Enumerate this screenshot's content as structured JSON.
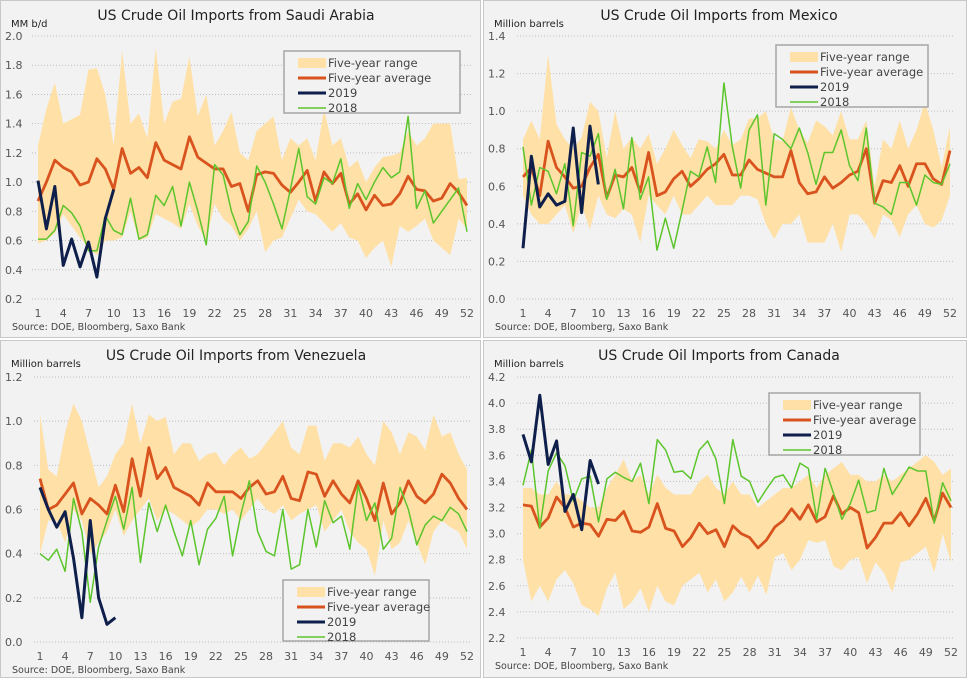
{
  "chart_data": [
    {
      "type": "line",
      "title": "US Crude Oil Imports from Saudi Arabia",
      "ylabel": "MM b/d",
      "xlabel": "",
      "source": "Source: DOE, Bloomberg, Saxo Bank",
      "ylim": [
        0.2,
        2.0
      ],
      "yticks": [
        "0.2",
        "0.4",
        "0.6",
        "0.8",
        "1.0",
        "1.2",
        "1.4",
        "1.6",
        "1.8",
        "2.0"
      ],
      "xticks": [
        "1",
        "4",
        "7",
        "10",
        "13",
        "16",
        "19",
        "22",
        "25",
        "28",
        "31",
        "34",
        "37",
        "40",
        "43",
        "46",
        "49",
        "52"
      ],
      "grid": true,
      "legend_position": "top-right",
      "legend": [
        "Five-year range",
        "Five-year average",
        "2019",
        "2018"
      ],
      "range_high": [
        1.25,
        1.5,
        1.68,
        1.4,
        1.43,
        1.46,
        1.77,
        1.78,
        1.6,
        1.25,
        1.9,
        1.4,
        1.47,
        1.3,
        1.92,
        1.4,
        1.55,
        1.57,
        1.86,
        1.45,
        1.6,
        1.25,
        1.35,
        1.48,
        1.2,
        1.15,
        1.35,
        1.4,
        1.45,
        1.15,
        1.3,
        1.25,
        1.3,
        1.15,
        1.5,
        1.25,
        1.3,
        1.1,
        1.15,
        1.0,
        1.1,
        1.17,
        1.18,
        1.2,
        1.35,
        1.25,
        1.3,
        1.4,
        1.4,
        1.4,
        1.02,
        1.03
      ],
      "range_low": [
        0.58,
        0.6,
        0.65,
        0.78,
        0.7,
        0.62,
        0.55,
        0.5,
        0.6,
        0.6,
        0.62,
        0.8,
        0.6,
        0.62,
        0.78,
        0.75,
        0.72,
        0.68,
        0.85,
        0.7,
        0.6,
        0.85,
        0.75,
        0.7,
        0.6,
        0.68,
        0.8,
        0.52,
        0.6,
        0.62,
        0.75,
        0.88,
        0.8,
        0.78,
        0.72,
        0.66,
        0.72,
        0.62,
        0.6,
        0.48,
        0.55,
        0.6,
        0.42,
        0.7,
        0.66,
        0.7,
        0.75,
        0.6,
        0.55,
        0.5,
        0.75,
        0.68
      ],
      "average": [
        0.87,
        1.0,
        1.15,
        1.1,
        1.07,
        0.98,
        1.0,
        1.16,
        1.09,
        0.95,
        1.23,
        1.06,
        1.1,
        1.03,
        1.27,
        1.15,
        1.12,
        1.09,
        1.31,
        1.17,
        1.13,
        1.09,
        1.09,
        0.97,
        0.99,
        0.8,
        1.05,
        1.07,
        1.06,
        0.98,
        0.93,
        1.0,
        1.08,
        0.87,
        1.07,
        0.99,
        1.06,
        0.85,
        0.92,
        0.81,
        0.91,
        0.84,
        0.85,
        0.92,
        1.04,
        0.95,
        0.94,
        0.87,
        0.89,
        0.99,
        0.93,
        0.84
      ],
      "y2019": [
        1.01,
        0.68,
        0.97,
        0.43,
        0.61,
        0.42,
        0.59,
        0.35,
        0.75,
        0.95
      ],
      "y2018": [
        0.61,
        0.61,
        0.67,
        0.84,
        0.79,
        0.7,
        0.53,
        0.53,
        0.77,
        0.67,
        0.64,
        0.89,
        0.61,
        0.64,
        0.91,
        0.84,
        0.97,
        0.7,
        1.0,
        0.8,
        0.57,
        1.12,
        1.05,
        0.8,
        0.64,
        0.73,
        1.11,
        1.0,
        0.85,
        0.68,
        0.95,
        1.23,
        0.9,
        0.85,
        1.03,
        0.99,
        1.16,
        0.82,
        0.99,
        0.88,
        1.0,
        1.1,
        1.03,
        1.07,
        1.45,
        0.82,
        0.94,
        0.72,
        0.8,
        0.88,
        0.96,
        0.66
      ]
    },
    {
      "type": "line",
      "title": "US Crude Oil Imports from Mexico",
      "ylabel": "Million barrels",
      "xlabel": "",
      "source": "Source: DOE, Bloomberg, Saxo Bank",
      "ylim": [
        0.0,
        1.4
      ],
      "yticks": [
        "0.0",
        "0.2",
        "0.4",
        "0.6",
        "0.8",
        "1.0",
        "1.2",
        "1.4"
      ],
      "xticks": [
        "1",
        "4",
        "7",
        "10",
        "13",
        "16",
        "19",
        "22",
        "25",
        "28",
        "31",
        "34",
        "37",
        "40",
        "43",
        "46",
        "49",
        "52"
      ],
      "grid": true,
      "legend_position": "top-right",
      "legend": [
        "Five-year range",
        "Five-year average",
        "2019",
        "2018"
      ],
      "range_high": [
        0.85,
        0.95,
        0.85,
        1.3,
        0.93,
        0.85,
        0.8,
        0.86,
        1.05,
        1.0,
        0.75,
        1.0,
        0.8,
        0.86,
        0.8,
        0.88,
        0.72,
        0.8,
        0.9,
        0.82,
        0.75,
        0.85,
        0.84,
        0.8,
        0.9,
        0.82,
        0.85,
        0.96,
        0.96,
        1.0,
        0.85,
        0.84,
        1.02,
        0.9,
        0.83,
        0.95,
        0.92,
        0.87,
        1.0,
        0.85,
        0.85,
        0.95,
        0.6,
        0.85,
        0.8,
        0.95,
        0.8,
        0.9,
        1.05,
        0.9,
        0.7,
        0.92
      ],
      "range_low": [
        0.55,
        0.45,
        0.4,
        0.4,
        0.45,
        0.5,
        0.35,
        0.5,
        0.37,
        0.55,
        0.45,
        0.43,
        0.48,
        0.45,
        0.3,
        0.55,
        0.5,
        0.45,
        0.55,
        0.45,
        0.45,
        0.5,
        0.55,
        0.5,
        0.5,
        0.5,
        0.55,
        0.55,
        0.53,
        0.4,
        0.32,
        0.4,
        0.4,
        0.45,
        0.3,
        0.3,
        0.3,
        0.4,
        0.25,
        0.45,
        0.45,
        0.4,
        0.32,
        0.45,
        0.42,
        0.33,
        0.45,
        0.5,
        0.4,
        0.38,
        0.42,
        0.55
      ],
      "average": [
        0.65,
        0.7,
        0.55,
        0.84,
        0.7,
        0.65,
        0.59,
        0.6,
        0.7,
        0.77,
        0.54,
        0.66,
        0.65,
        0.7,
        0.57,
        0.78,
        0.55,
        0.57,
        0.64,
        0.68,
        0.6,
        0.64,
        0.69,
        0.72,
        0.77,
        0.66,
        0.66,
        0.74,
        0.69,
        0.67,
        0.65,
        0.65,
        0.79,
        0.62,
        0.56,
        0.57,
        0.65,
        0.59,
        0.62,
        0.66,
        0.68,
        0.8,
        0.51,
        0.63,
        0.62,
        0.71,
        0.6,
        0.72,
        0.72,
        0.64,
        0.61,
        0.79
      ],
      "y2019": [
        0.27,
        0.76,
        0.49,
        0.56,
        0.5,
        0.52,
        0.91,
        0.46,
        0.92,
        0.61
      ],
      "y2018": [
        0.81,
        0.5,
        0.7,
        0.68,
        0.56,
        0.72,
        0.39,
        0.78,
        0.76,
        0.88,
        0.53,
        0.69,
        0.48,
        0.86,
        0.53,
        0.65,
        0.26,
        0.43,
        0.27,
        0.47,
        0.68,
        0.65,
        0.81,
        0.62,
        1.15,
        0.81,
        0.59,
        0.9,
        0.98,
        0.5,
        0.88,
        0.85,
        0.8,
        0.91,
        0.78,
        0.61,
        0.78,
        0.78,
        0.9,
        0.71,
        0.63,
        0.91,
        0.51,
        0.49,
        0.45,
        0.62,
        0.62,
        0.5,
        0.66,
        0.62,
        0.61,
        0.72
      ]
    },
    {
      "type": "line",
      "title": "US Crude Oil Imports from Venezuela",
      "ylabel": "Million barrels",
      "xlabel": "",
      "source": "Source: DOE, Bloomberg, Saxo Bank",
      "ylim": [
        0.0,
        1.2
      ],
      "yticks": [
        "0.0",
        "0.2",
        "0.4",
        "0.6",
        "0.8",
        "1.0",
        "1.2"
      ],
      "xticks": [
        "1",
        "4",
        "7",
        "10",
        "13",
        "16",
        "19",
        "22",
        "25",
        "28",
        "31",
        "34",
        "37",
        "40",
        "43",
        "46",
        "49",
        "52"
      ],
      "grid": true,
      "legend_position": "bottom-right",
      "legend": [
        "Five-year range",
        "Five-year average",
        "2019",
        "2018"
      ],
      "range_high": [
        1.03,
        0.78,
        0.75,
        0.95,
        1.08,
        1.0,
        0.85,
        0.7,
        0.75,
        0.85,
        0.9,
        1.08,
        0.9,
        1.03,
        1.0,
        1.02,
        0.85,
        0.9,
        0.9,
        0.82,
        0.85,
        0.86,
        0.8,
        0.85,
        0.88,
        0.83,
        0.85,
        0.9,
        0.95,
        1.0,
        0.88,
        0.85,
        0.98,
        0.98,
        0.82,
        0.9,
        0.9,
        0.88,
        0.93,
        0.85,
        0.8,
        1.0,
        0.95,
        0.85,
        0.95,
        0.93,
        0.87,
        1.03,
        0.93,
        0.95,
        0.85,
        0.78
      ],
      "range_low": [
        0.4,
        0.55,
        0.55,
        0.45,
        0.6,
        0.55,
        0.4,
        0.45,
        0.5,
        0.6,
        0.48,
        0.55,
        0.6,
        0.65,
        0.55,
        0.6,
        0.58,
        0.55,
        0.52,
        0.55,
        0.6,
        0.6,
        0.58,
        0.6,
        0.55,
        0.6,
        0.65,
        0.6,
        0.58,
        0.62,
        0.55,
        0.58,
        0.6,
        0.62,
        0.5,
        0.55,
        0.6,
        0.5,
        0.45,
        0.42,
        0.3,
        0.55,
        0.42,
        0.45,
        0.55,
        0.45,
        0.35,
        0.5,
        0.55,
        0.52,
        0.5,
        0.42
      ],
      "average": [
        0.74,
        0.6,
        0.62,
        0.67,
        0.72,
        0.58,
        0.65,
        0.62,
        0.58,
        0.71,
        0.59,
        0.83,
        0.66,
        0.88,
        0.74,
        0.79,
        0.7,
        0.68,
        0.66,
        0.62,
        0.72,
        0.68,
        0.68,
        0.68,
        0.65,
        0.7,
        0.73,
        0.67,
        0.68,
        0.75,
        0.65,
        0.64,
        0.77,
        0.76,
        0.66,
        0.73,
        0.67,
        0.63,
        0.73,
        0.65,
        0.55,
        0.72,
        0.58,
        0.63,
        0.73,
        0.66,
        0.63,
        0.67,
        0.76,
        0.72,
        0.65,
        0.6
      ],
      "y2019": [
        0.7,
        0.6,
        0.52,
        0.59,
        0.38,
        0.11,
        0.55,
        0.2,
        0.08,
        0.11
      ],
      "y2018": [
        0.4,
        0.37,
        0.42,
        0.32,
        0.65,
        0.5,
        0.18,
        0.43,
        0.55,
        0.66,
        0.51,
        0.7,
        0.36,
        0.63,
        0.5,
        0.62,
        0.5,
        0.39,
        0.55,
        0.35,
        0.51,
        0.56,
        0.66,
        0.39,
        0.58,
        0.73,
        0.5,
        0.41,
        0.39,
        0.6,
        0.33,
        0.35,
        0.6,
        0.43,
        0.64,
        0.54,
        0.57,
        0.42,
        0.71,
        0.55,
        0.63,
        0.42,
        0.47,
        0.7,
        0.6,
        0.44,
        0.53,
        0.57,
        0.55,
        0.61,
        0.58,
        0.5
      ]
    },
    {
      "type": "line",
      "title": "US Crude Oil Imports from Canada",
      "ylabel": "Million barrels",
      "xlabel": "",
      "source": "Source: DOE, Bloomberg, Saxo Bank",
      "ylim": [
        2.2,
        4.2
      ],
      "yticks": [
        "2.2",
        "2.4",
        "2.6",
        "2.8",
        "3.0",
        "3.2",
        "3.4",
        "3.6",
        "3.8",
        "4.0",
        "4.2"
      ],
      "xticks": [
        "1",
        "4",
        "7",
        "10",
        "13",
        "16",
        "19",
        "22",
        "25",
        "28",
        "31",
        "34",
        "37",
        "40",
        "43",
        "46",
        "49",
        "52"
      ],
      "grid": true,
      "legend_position": "top-right",
      "legend": [
        "Five-year range",
        "Five-year average",
        "2019",
        "2018"
      ],
      "range_high": [
        3.35,
        3.35,
        3.3,
        3.3,
        3.4,
        3.3,
        3.3,
        3.25,
        3.2,
        3.2,
        3.35,
        3.45,
        3.57,
        3.4,
        3.45,
        3.3,
        3.45,
        3.35,
        3.3,
        3.3,
        3.3,
        3.4,
        3.45,
        3.35,
        3.3,
        3.4,
        3.3,
        3.3,
        3.2,
        3.25,
        3.3,
        3.35,
        3.35,
        3.4,
        3.45,
        3.35,
        3.45,
        3.5,
        3.55,
        3.45,
        3.45,
        3.4,
        3.4,
        3.45,
        3.4,
        3.45,
        3.5,
        3.55,
        3.6,
        3.55,
        3.45,
        3.5
      ],
      "range_low": [
        2.8,
        2.48,
        2.6,
        2.48,
        2.65,
        2.72,
        2.62,
        2.45,
        2.42,
        2.37,
        2.58,
        2.7,
        2.42,
        2.48,
        2.58,
        2.4,
        2.6,
        2.48,
        2.45,
        2.6,
        2.65,
        2.7,
        2.55,
        2.65,
        2.48,
        2.55,
        2.67,
        2.55,
        2.68,
        2.53,
        2.82,
        2.85,
        2.72,
        2.8,
        2.95,
        2.93,
        2.95,
        2.75,
        2.72,
        2.8,
        2.82,
        2.62,
        2.78,
        2.7,
        2.55,
        2.78,
        2.8,
        2.85,
        2.9,
        2.7,
        3.0,
        2.78
      ],
      "average": [
        3.22,
        3.21,
        3.05,
        3.12,
        3.28,
        3.2,
        3.05,
        3.08,
        3.07,
        2.98,
        3.11,
        3.1,
        3.17,
        3.02,
        3.01,
        3.05,
        3.23,
        3.04,
        3.02,
        2.9,
        2.97,
        3.08,
        3.0,
        3.03,
        2.9,
        3.06,
        3.0,
        2.97,
        2.89,
        2.95,
        3.05,
        3.1,
        3.19,
        3.11,
        3.22,
        3.09,
        3.13,
        3.29,
        3.15,
        3.2,
        3.16,
        2.89,
        2.97,
        3.08,
        3.08,
        3.16,
        3.06,
        3.15,
        3.27,
        3.1,
        3.31,
        3.2
      ],
      "y2019": [
        3.76,
        3.55,
        4.06,
        3.53,
        3.71,
        3.17,
        3.3,
        3.03,
        3.56,
        3.38
      ],
      "y2018": [
        3.37,
        3.64,
        3.04,
        3.48,
        3.62,
        3.52,
        3.25,
        3.42,
        3.44,
        3.09,
        3.42,
        3.47,
        3.43,
        3.4,
        3.54,
        3.23,
        3.72,
        3.64,
        3.47,
        3.48,
        3.42,
        3.64,
        3.71,
        3.57,
        3.23,
        3.72,
        3.44,
        3.4,
        3.24,
        3.34,
        3.43,
        3.45,
        3.35,
        3.54,
        3.5,
        3.11,
        3.5,
        3.31,
        3.11,
        3.23,
        3.41,
        3.16,
        3.18,
        3.5,
        3.3,
        3.4,
        3.51,
        3.48,
        3.48,
        3.08,
        3.39,
        3.25
      ]
    }
  ],
  "colors": {
    "range": "#ffe0a6",
    "average": "#d9531e",
    "y2019": "#0f1f4b",
    "y2018": "#5cc52c",
    "grid": "#bdbdbd"
  }
}
